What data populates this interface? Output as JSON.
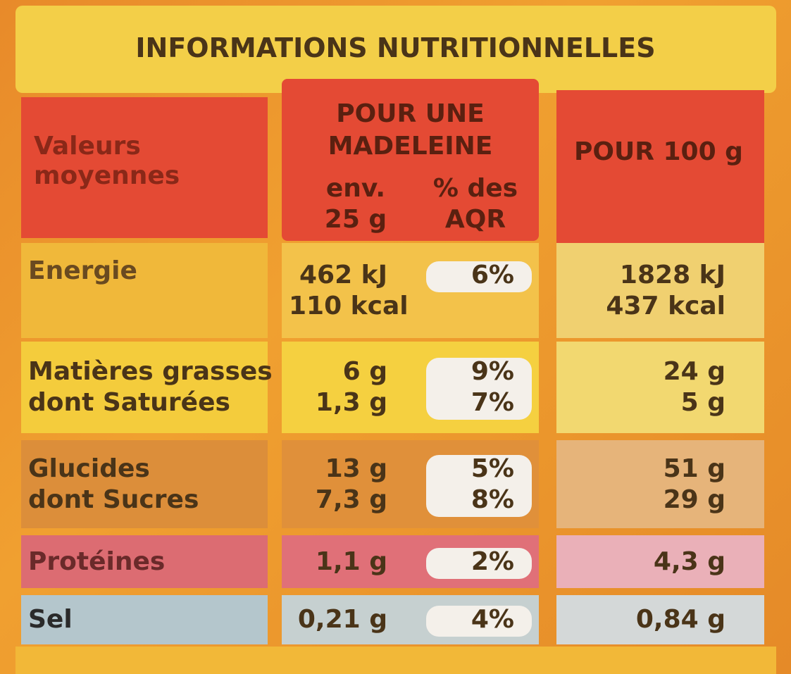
{
  "title": "INFORMATIONS NUTRITIONNELLES",
  "header": {
    "label": [
      "Valeurs",
      "moyennes"
    ],
    "serving": [
      "POUR UNE",
      "MADELEINE"
    ],
    "serving_amount": [
      "env.",
      "25 g"
    ],
    "serving_pct": [
      "% des",
      "AQR"
    ],
    "per100": [
      "POUR 100 g"
    ]
  },
  "rows": [
    {
      "label": [
        "Energie"
      ],
      "amount": [
        "462 kJ",
        "110 kcal"
      ],
      "pct": [
        "6%"
      ],
      "per100": [
        "1828 kJ",
        "437 kcal"
      ]
    },
    {
      "label": [
        "Matières grasses",
        "dont Saturées"
      ],
      "amount": [
        "6 g",
        "1,3 g"
      ],
      "pct": [
        "9%",
        "7%"
      ],
      "per100": [
        "24 g",
        "5 g"
      ]
    },
    {
      "label": [
        "Glucides",
        "dont Sucres"
      ],
      "amount": [
        "13 g",
        "7,3 g"
      ],
      "pct": [
        "5%",
        "8%"
      ],
      "per100": [
        "51 g",
        "29 g"
      ]
    },
    {
      "label": [
        "Protéines"
      ],
      "amount": [
        "1,1 g"
      ],
      "pct": [
        "2%"
      ],
      "per100": [
        "4,3 g"
      ]
    },
    {
      "label": [
        "Sel"
      ],
      "amount": [
        "0,21 g"
      ],
      "pct": [
        "4%"
      ],
      "per100": [
        "0,84 g"
      ]
    }
  ]
}
